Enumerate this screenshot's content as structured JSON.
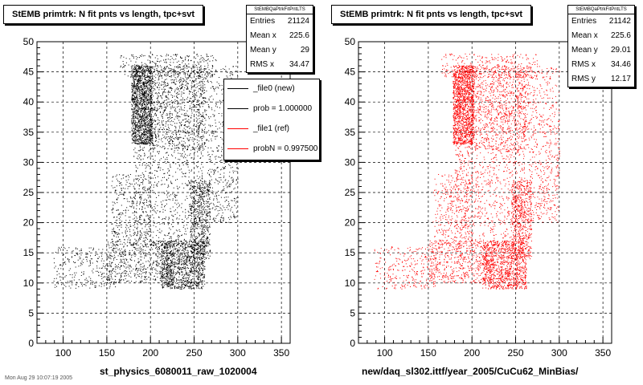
{
  "footer": "Mon Aug 29 10:07:19 2005",
  "chart_data": [
    {
      "type": "scatter",
      "title": "StEMB primtrk: N fit pnts vs length, tpc+svt",
      "xlabel": "st_physics_6080011_raw_1020004",
      "ylabel": "",
      "xlim": [
        70,
        360
      ],
      "ylim": [
        0,
        50
      ],
      "xticks": [
        100,
        150,
        200,
        250,
        300,
        350
      ],
      "yticks": [
        0,
        5,
        10,
        15,
        20,
        25,
        30,
        35,
        40,
        45,
        50
      ],
      "grid": true,
      "marker_color": "#000000",
      "stats": {
        "name": "StEMBQaPtrkFitPntLTS",
        "rows": [
          {
            "label": "Entries",
            "value": "21124"
          },
          {
            "label": "Mean x",
            "value": "225.6"
          },
          {
            "label": "Mean y",
            "value": "29"
          },
          {
            "label": "RMS x",
            "value": "34.47"
          }
        ]
      },
      "legend": {
        "placement": "right",
        "entries": [
          {
            "label": "_file0 (new)",
            "color": "#000000"
          },
          {
            "label": "prob = 1.000000",
            "color": "#000000"
          },
          {
            "label": "_file1 (ref)",
            "color": "#ff0000"
          },
          {
            "label": "probN = 0.997500",
            "color": "#ff0000"
          }
        ]
      },
      "density_clusters": [
        {
          "x": [
            178,
            202
          ],
          "y": [
            33,
            46
          ],
          "weight": 0.22
        },
        {
          "x": [
            200,
            262
          ],
          "y": [
            32,
            46
          ],
          "weight": 0.14
        },
        {
          "x": [
            252,
            300
          ],
          "y": [
            32,
            46
          ],
          "weight": 0.05
        },
        {
          "x": [
            212,
            262
          ],
          "y": [
            9,
            17
          ],
          "weight": 0.16
        },
        {
          "x": [
            245,
            268
          ],
          "y": [
            14,
            27
          ],
          "weight": 0.08
        },
        {
          "x": [
            150,
            225
          ],
          "y": [
            10,
            17
          ],
          "weight": 0.08
        },
        {
          "x": [
            88,
            160
          ],
          "y": [
            9,
            16
          ],
          "weight": 0.04
        },
        {
          "x": [
            180,
            260
          ],
          "y": [
            16,
            33
          ],
          "weight": 0.1
        },
        {
          "x": [
            155,
            200
          ],
          "y": [
            16,
            28
          ],
          "weight": 0.05
        },
        {
          "x": [
            265,
            300
          ],
          "y": [
            20,
            32
          ],
          "weight": 0.04
        },
        {
          "x": [
            165,
            275
          ],
          "y": [
            44,
            48
          ],
          "weight": 0.04
        }
      ]
    },
    {
      "type": "scatter",
      "title": "StEMB primtrk: N fit pnts vs length, tpc+svt",
      "xlabel": "new/daq_sl302.ittf/year_2005/CuCu62_MinBias/",
      "ylabel": "",
      "xlim": [
        70,
        360
      ],
      "ylim": [
        0,
        50
      ],
      "xticks": [
        100,
        150,
        200,
        250,
        300,
        350
      ],
      "yticks": [
        0,
        5,
        10,
        15,
        20,
        25,
        30,
        35,
        40,
        45,
        50
      ],
      "grid": true,
      "marker_color": "#ff0000",
      "stats": {
        "name": "StEMBQaPtrkFitPntLTS",
        "rows": [
          {
            "label": "Entries",
            "value": "21142"
          },
          {
            "label": "Mean x",
            "value": "225.6"
          },
          {
            "label": "Mean y",
            "value": "29.01"
          },
          {
            "label": "RMS x",
            "value": "34.46"
          },
          {
            "label": "RMS y",
            "value": "12.17"
          }
        ]
      },
      "density_clusters": [
        {
          "x": [
            178,
            202
          ],
          "y": [
            33,
            46
          ],
          "weight": 0.22
        },
        {
          "x": [
            200,
            262
          ],
          "y": [
            32,
            46
          ],
          "weight": 0.14
        },
        {
          "x": [
            252,
            300
          ],
          "y": [
            32,
            46
          ],
          "weight": 0.05
        },
        {
          "x": [
            212,
            262
          ],
          "y": [
            9,
            17
          ],
          "weight": 0.16
        },
        {
          "x": [
            245,
            268
          ],
          "y": [
            14,
            27
          ],
          "weight": 0.08
        },
        {
          "x": [
            150,
            225
          ],
          "y": [
            10,
            17
          ],
          "weight": 0.08
        },
        {
          "x": [
            88,
            160
          ],
          "y": [
            9,
            16
          ],
          "weight": 0.04
        },
        {
          "x": [
            180,
            260
          ],
          "y": [
            16,
            33
          ],
          "weight": 0.1
        },
        {
          "x": [
            155,
            200
          ],
          "y": [
            16,
            28
          ],
          "weight": 0.05
        },
        {
          "x": [
            265,
            300
          ],
          "y": [
            20,
            32
          ],
          "weight": 0.04
        },
        {
          "x": [
            165,
            275
          ],
          "y": [
            44,
            48
          ],
          "weight": 0.04
        }
      ]
    }
  ]
}
